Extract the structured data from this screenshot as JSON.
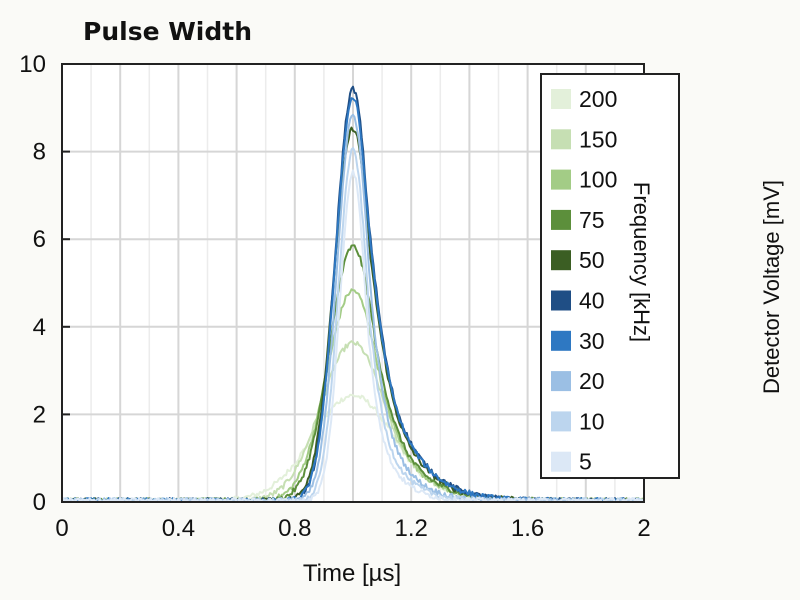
{
  "chart_data": {
    "type": "line",
    "title": "Pulse Width",
    "xlabel": "Time [µs]",
    "ylabel": "Detector Voltage [mV]",
    "xlim": [
      0,
      2
    ],
    "ylim": [
      0,
      10
    ],
    "x_ticks": [
      "0",
      "0.4",
      "0.8",
      "1.2",
      "1.6",
      "2"
    ],
    "y_ticks": [
      "0",
      "2",
      "4",
      "6",
      "8",
      "10"
    ],
    "grid": true,
    "legend": {
      "title": "Frequency [kHz]",
      "placement": "top-right"
    },
    "series": [
      {
        "name": "200",
        "peak": 2.4,
        "peak_time": 1.0,
        "rise_sigma": 0.14,
        "fall_tau": 0.22,
        "color": "#e3f0da"
      },
      {
        "name": "150",
        "peak": 3.6,
        "peak_time": 1.0,
        "rise_sigma": 0.11,
        "fall_tau": 0.19,
        "color": "#c6dfb3"
      },
      {
        "name": "100",
        "peak": 4.8,
        "peak_time": 1.0,
        "rise_sigma": 0.09,
        "fall_tau": 0.17,
        "color": "#a3cc86"
      },
      {
        "name": "75",
        "peak": 5.8,
        "peak_time": 1.0,
        "rise_sigma": 0.08,
        "fall_tau": 0.16,
        "color": "#5c8f3b"
      },
      {
        "name": "50",
        "peak": 8.5,
        "peak_time": 1.0,
        "rise_sigma": 0.065,
        "fall_tau": 0.15,
        "color": "#3b5e23"
      },
      {
        "name": "40",
        "peak": 9.4,
        "peak_time": 1.0,
        "rise_sigma": 0.06,
        "fall_tau": 0.15,
        "color": "#1f4e85"
      },
      {
        "name": "30",
        "peak": 9.2,
        "peak_time": 1.0,
        "rise_sigma": 0.06,
        "fall_tau": 0.15,
        "color": "#2e78c2"
      },
      {
        "name": "20",
        "peak": 8.8,
        "peak_time": 1.0,
        "rise_sigma": 0.055,
        "fall_tau": 0.1,
        "color": "#9bbfe4"
      },
      {
        "name": "10",
        "peak": 8.0,
        "peak_time": 1.0,
        "rise_sigma": 0.05,
        "fall_tau": 0.09,
        "color": "#bcd5ee"
      },
      {
        "name": "5",
        "peak": 7.5,
        "peak_time": 1.0,
        "rise_sigma": 0.045,
        "fall_tau": 0.08,
        "color": "#dce8f6"
      }
    ]
  }
}
